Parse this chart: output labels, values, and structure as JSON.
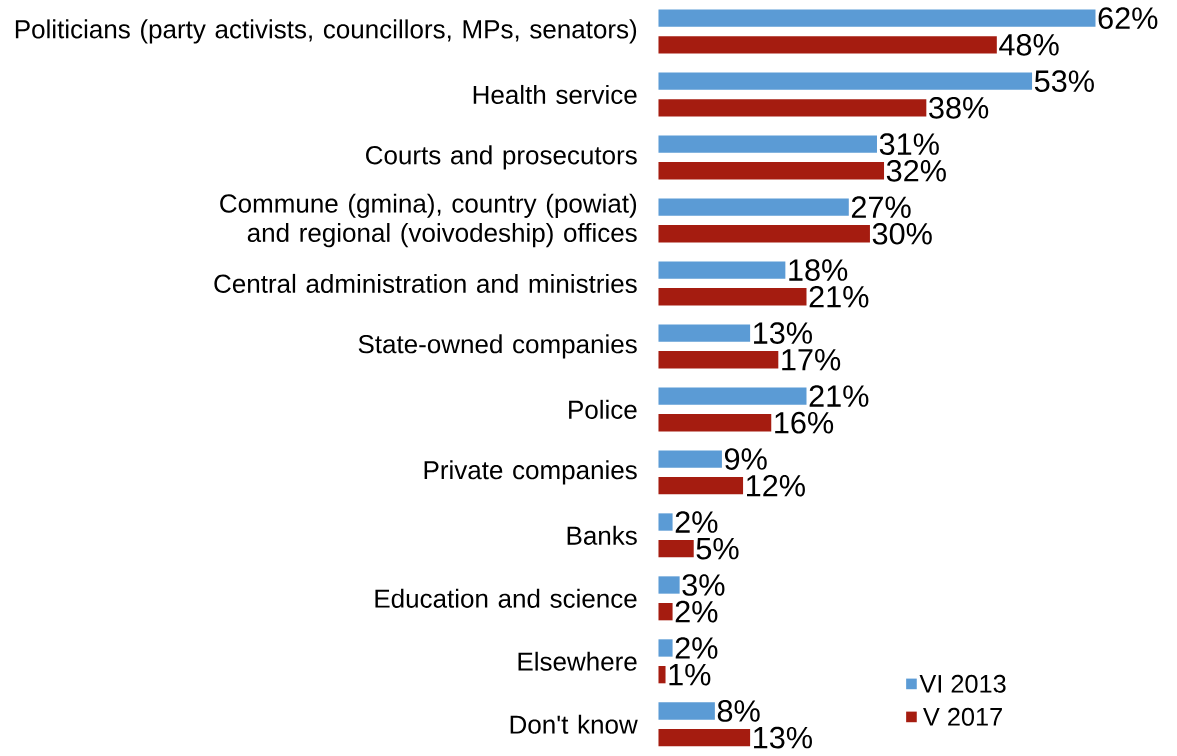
{
  "chart_data": {
    "type": "bar",
    "orientation": "horizontal",
    "categories": [
      "Politicians (party activists, councillors, MPs, senators)",
      "Health service",
      "Courts and prosecutors",
      "Commune (gmina), country (powiat) and regional (voivodeship) offices",
      "Central administration and ministries",
      "State-owned companies",
      "Police",
      "Private companies",
      "Banks",
      "Education and science",
      "Elsewhere",
      "Don't know"
    ],
    "series": [
      {
        "name": "VI 2013",
        "color": "#5b9bd5",
        "values": [
          62,
          53,
          31,
          27,
          18,
          13,
          21,
          9,
          2,
          3,
          2,
          8
        ],
        "value_labels": [
          "62%",
          "53%",
          "31%",
          "27%",
          "18%",
          "13%",
          "21%",
          "9%",
          "2%",
          "3%",
          "2%",
          "8%"
        ]
      },
      {
        "name": "V 2017",
        "color": "#a51c10",
        "values": [
          48,
          38,
          32,
          30,
          21,
          17,
          16,
          12,
          5,
          2,
          1,
          13
        ],
        "value_labels": [
          "48%",
          "38%",
          "32%",
          "30%",
          "21%",
          "17%",
          "16%",
          "12%",
          "5%",
          "2%",
          "1%",
          "13%"
        ]
      }
    ],
    "legend": "bottom right"
  }
}
